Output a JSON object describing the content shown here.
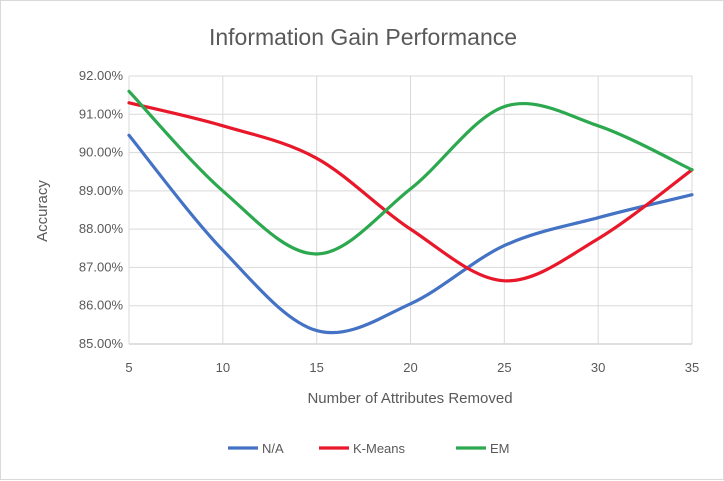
{
  "chart_data": {
    "type": "line",
    "title": "Information Gain Performance",
    "xlabel": "Number of Attributes Removed",
    "ylabel": "Accuracy",
    "x": [
      5,
      10,
      15,
      20,
      25,
      30,
      35
    ],
    "xlim": [
      5,
      35
    ],
    "ylim": [
      0.85,
      0.92
    ],
    "x_ticks": [
      "5",
      "10",
      "15",
      "20",
      "25",
      "30",
      "35"
    ],
    "y_ticks": [
      "85.00%",
      "86.00%",
      "87.00%",
      "88.00%",
      "89.00%",
      "90.00%",
      "91.00%",
      "92.00%"
    ],
    "grid": true,
    "smooth": true,
    "legend_position": "bottom",
    "series": [
      {
        "name": "N/A",
        "color": "#4472C4",
        "values": [
          0.9045,
          0.8745,
          0.8535,
          0.8605,
          0.8757,
          0.883,
          0.889
        ]
      },
      {
        "name": "K-Means",
        "color": "#E8182A",
        "values": [
          0.913,
          0.907,
          0.8985,
          0.88,
          0.8665,
          0.8775,
          0.8955
        ]
      },
      {
        "name": "EM",
        "color": "#2CA84F",
        "values": [
          0.916,
          0.89,
          0.8735,
          0.8905,
          0.912,
          0.907,
          0.8955
        ]
      }
    ]
  }
}
